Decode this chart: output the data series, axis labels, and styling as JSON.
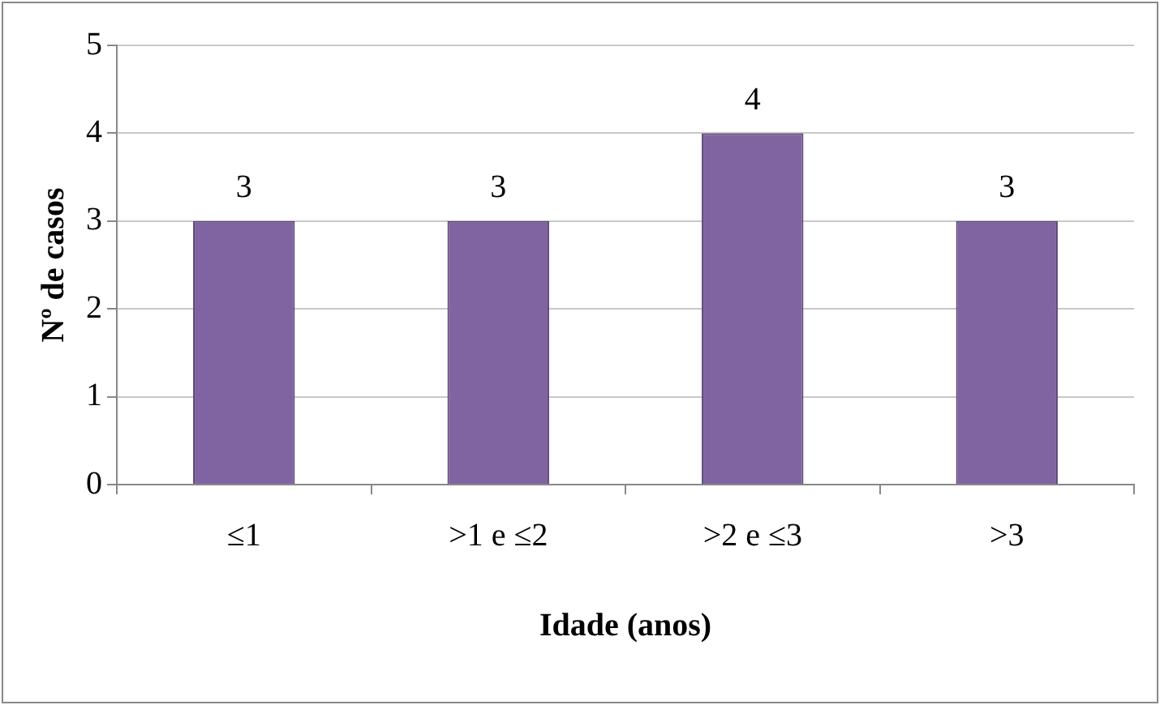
{
  "chart_data": {
    "type": "bar",
    "xlabel": "Idade (anos)",
    "ylabel": "Nº de casos",
    "categories": [
      "≤1",
      ">1 e ≤2",
      ">2 e ≤3",
      ">3"
    ],
    "values": [
      3,
      3,
      4,
      3
    ],
    "color": "#8064a2",
    "ylim": [
      0,
      5
    ],
    "yticks": [
      0,
      1,
      2,
      3,
      4,
      5
    ],
    "grid": "y",
    "legend": false,
    "data_labels": true
  }
}
